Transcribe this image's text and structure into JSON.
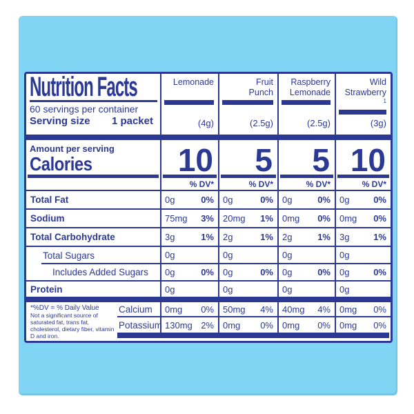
{
  "colors": {
    "navy": "#2b3894",
    "sky_blue": "#80d4f4",
    "panel_bg": "#ffffff"
  },
  "panel": {
    "title": "Nutrition Facts",
    "servings_line": "60 servings per container",
    "serving_size_label": "Serving size",
    "serving_size_value": "1 packet",
    "amount_label": "Amount per serving",
    "calories_label": "Calories",
    "dv_header": "% DV*"
  },
  "flavors": [
    {
      "name_line1": "Lemonade",
      "name_line2": "",
      "sup": "",
      "weight": "(4g)",
      "calories": "10"
    },
    {
      "name_line1": "Fruit",
      "name_line2": "Punch",
      "sup": "",
      "weight": "(2.5g)",
      "calories": "5"
    },
    {
      "name_line1": "Raspberry",
      "name_line2": "Lemonade",
      "sup": "",
      "weight": "(2.5g)",
      "calories": "5"
    },
    {
      "name_line1": "Wild",
      "name_line2": "Strawberry",
      "sup": "1",
      "weight": "(3g)",
      "calories": "10"
    }
  ],
  "nutrients": [
    {
      "label": "Total Fat",
      "values": [
        {
          "amt": "0g",
          "dv": "0%"
        },
        {
          "amt": "0g",
          "dv": "0%"
        },
        {
          "amt": "0g",
          "dv": "0%"
        },
        {
          "amt": "0g",
          "dv": "0%"
        }
      ]
    },
    {
      "label": "Sodium",
      "values": [
        {
          "amt": "75mg",
          "dv": "3%"
        },
        {
          "amt": "20mg",
          "dv": "1%"
        },
        {
          "amt": "0mg",
          "dv": "0%"
        },
        {
          "amt": "0mg",
          "dv": "0%"
        }
      ]
    },
    {
      "label": "Total Carbohydrate",
      "values": [
        {
          "amt": "3g",
          "dv": "1%"
        },
        {
          "amt": "2g",
          "dv": "1%"
        },
        {
          "amt": "2g",
          "dv": "1%"
        },
        {
          "amt": "3g",
          "dv": "1%"
        }
      ]
    },
    {
      "label": "Total Sugars",
      "values": [
        {
          "amt": "0g",
          "dv": ""
        },
        {
          "amt": "0g",
          "dv": ""
        },
        {
          "amt": "0g",
          "dv": ""
        },
        {
          "amt": "0g",
          "dv": ""
        }
      ]
    },
    {
      "label": "Includes Added Sugars",
      "values": [
        {
          "amt": "0g",
          "dv": "0%"
        },
        {
          "amt": "0g",
          "dv": "0%"
        },
        {
          "amt": "0g",
          "dv": "0%"
        },
        {
          "amt": "0g",
          "dv": "0%"
        }
      ]
    },
    {
      "label": "Protein",
      "values": [
        {
          "amt": "0g",
          "dv": ""
        },
        {
          "amt": "0g",
          "dv": ""
        },
        {
          "amt": "0g",
          "dv": ""
        },
        {
          "amt": "0g",
          "dv": ""
        }
      ]
    }
  ],
  "minerals": [
    {
      "label": "Calcium",
      "values": [
        {
          "amt": "0mg",
          "dv": "0%"
        },
        {
          "amt": "50mg",
          "dv": "4%"
        },
        {
          "amt": "40mg",
          "dv": "4%"
        },
        {
          "amt": "0mg",
          "dv": "0%"
        }
      ]
    },
    {
      "label": "Potassium",
      "values": [
        {
          "amt": "130mg",
          "dv": "2%"
        },
        {
          "amt": "0mg",
          "dv": "0%"
        },
        {
          "amt": "0mg",
          "dv": "0%"
        },
        {
          "amt": "0mg",
          "dv": "0%"
        }
      ]
    }
  ],
  "footnote": {
    "dv_note": "*%DV = % Daily Value",
    "source_note": "Not a significant source of saturated fat, trans fat, cholesterol, dietary fiber, vitamin D and iron."
  }
}
